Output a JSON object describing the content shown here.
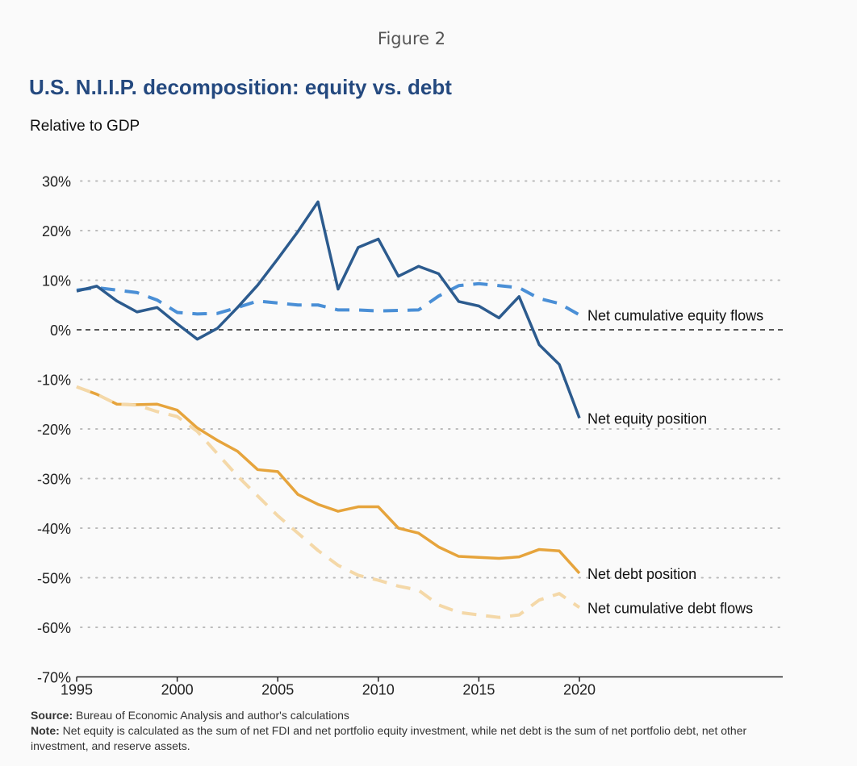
{
  "figure_label": "Figure 2",
  "chart_data": {
    "type": "line",
    "title": "U.S. N.I.I.P. decomposition: equity vs. debt",
    "subtitle": "Relative to GDP",
    "xlabel": "",
    "ylabel": "",
    "xlim": [
      1995,
      2030
    ],
    "ylim": [
      -70,
      30
    ],
    "x_ticks": [
      1995,
      2000,
      2005,
      2010,
      2015,
      2020
    ],
    "y_ticks": [
      "30%",
      "20%",
      "10%",
      "0%",
      "-10%",
      "-20%",
      "-30%",
      "-40%",
      "-50%",
      "-60%",
      "-70%"
    ],
    "grid": "horizontal dotted",
    "zero_line": "dashed black",
    "x": [
      1995,
      1996,
      1997,
      1998,
      1999,
      2000,
      2001,
      2002,
      2003,
      2004,
      2005,
      2006,
      2007,
      2008,
      2009,
      2010,
      2011,
      2012,
      2013,
      2014,
      2015,
      2016,
      2017,
      2018,
      2019,
      2020
    ],
    "series": [
      {
        "name": "Net cumulative equity flows",
        "color": "#4a8fd6",
        "style": "dashed",
        "values": [
          8,
          8.5,
          8,
          7.5,
          6,
          3.5,
          3.2,
          3.3,
          4.5,
          5.8,
          5.4,
          5,
          5,
          4,
          4,
          3.8,
          3.9,
          4,
          6.8,
          8.9,
          9.3,
          8.9,
          8.5,
          6.3,
          5.3,
          3
        ]
      },
      {
        "name": "Net equity position",
        "color": "#2c5b8e",
        "style": "solid",
        "values": [
          7.8,
          8.8,
          5.8,
          3.6,
          4.5,
          1.2,
          -1.9,
          0.3,
          4.5,
          9,
          14.3,
          19.8,
          25.8,
          8.2,
          16.6,
          18.3,
          10.8,
          12.8,
          11.3,
          5.7,
          4.8,
          2.4,
          6.7,
          -3,
          -7,
          -17.8
        ]
      },
      {
        "name": "Net debt position",
        "color": "#e6a43c",
        "style": "solid",
        "values": [
          -11.5,
          -13,
          -15,
          -15.1,
          -15,
          -16.2,
          -19.8,
          -22.3,
          -24.5,
          -28.2,
          -28.6,
          -33.2,
          -35.2,
          -36.6,
          -35.7,
          -35.7,
          -40,
          -41,
          -43.8,
          -45.7,
          -45.9,
          -46.1,
          -45.8,
          -44.3,
          -44.6,
          -49.1
        ]
      },
      {
        "name": "Net cumulative debt flows",
        "color": "#f4d8a8",
        "style": "dashed",
        "values": [
          -11.5,
          -13,
          -15,
          -15.2,
          -16.5,
          -17.5,
          -20.5,
          -25,
          -29.5,
          -33.5,
          -37.5,
          -41,
          -44.5,
          -47.5,
          -49.5,
          -50.5,
          -51.7,
          -52.5,
          -55.5,
          -57,
          -57.5,
          -58,
          -57.5,
          -54.5,
          -53.2,
          -56
        ]
      }
    ]
  },
  "footer": {
    "source_label": "Source:",
    "source_text": " Bureau of Economic Analysis and author's calculations",
    "note_label": "Note:",
    "note_text": " Net equity is calculated as the sum of net FDI and net portfolio equity investment, while net debt is the sum of net portfolio debt, net other investment, and reserve assets."
  }
}
